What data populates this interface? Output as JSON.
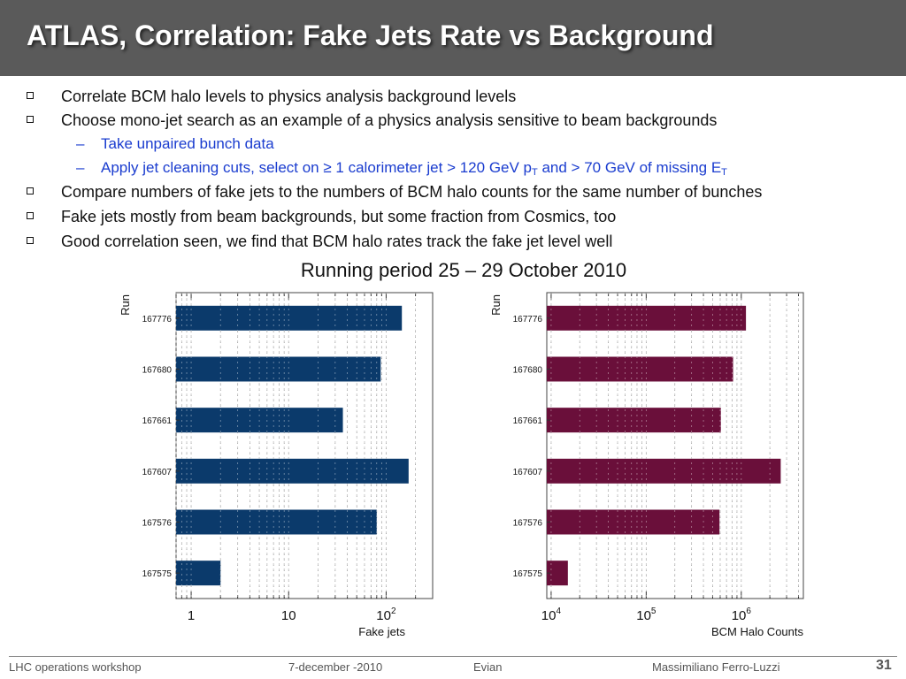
{
  "title": "ATLAS, Correlation: Fake Jets Rate vs Background",
  "bullets": [
    {
      "type": "main",
      "text": "Correlate BCM halo levels to physics analysis background levels"
    },
    {
      "type": "main",
      "text": "Choose mono-jet search as an example of a physics analysis sensitive to beam backgrounds"
    },
    {
      "type": "sub",
      "text": "Take unpaired bunch data"
    },
    {
      "type": "sub",
      "parts": [
        "Apply jet cleaning cuts, select on ≥ 1 calorimeter jet > 120 GeV p",
        "T",
        " and > 70 GeV of missing E",
        "T"
      ]
    },
    {
      "type": "main",
      "text": "Compare numbers of fake jets to the numbers of BCM halo counts for the same number of bunches"
    },
    {
      "type": "main",
      "text": "Fake jets mostly from beam backgrounds, but some fraction from Cosmics, too"
    },
    {
      "type": "main",
      "text": "Good correlation seen, we find that BCM halo rates track the fake jet level well"
    }
  ],
  "period": "Running period 25 – 29 October 2010",
  "chart_data": [
    {
      "type": "bar",
      "orientation": "horizontal",
      "scale": "log",
      "ylabel": "Run",
      "xlabel": "Fake jets",
      "categories": [
        "167776",
        "167680",
        "167661",
        "167607",
        "167576",
        "167575"
      ],
      "values": [
        145,
        88,
        36,
        170,
        80,
        2
      ],
      "xlim": [
        0.7,
        300
      ],
      "ticks": [
        {
          "base": "1",
          "exp": ""
        },
        {
          "base": "10",
          "exp": ""
        },
        {
          "base": "10",
          "exp": "2"
        }
      ],
      "tick_values": [
        1,
        10,
        100
      ],
      "color": "#0b3a6b"
    },
    {
      "type": "bar",
      "orientation": "horizontal",
      "scale": "log",
      "ylabel": "Run",
      "xlabel": "BCM Halo Counts",
      "categories": [
        "167776",
        "167680",
        "167661",
        "167607",
        "167576",
        "167575"
      ],
      "values": [
        1120000,
        820000,
        610000,
        2600000,
        590000,
        15000
      ],
      "xlim": [
        9000,
        4500000
      ],
      "ticks": [
        {
          "base": "10",
          "exp": "4"
        },
        {
          "base": "10",
          "exp": "5"
        },
        {
          "base": "10",
          "exp": "6"
        }
      ],
      "tick_values": [
        10000,
        100000,
        1000000
      ],
      "color": "#6a0f3a"
    }
  ],
  "footer": {
    "event": "LHC operations workshop",
    "date": "7-december -2010",
    "place": "Evian",
    "author": "Massimiliano Ferro-Luzzi",
    "page": "31"
  }
}
